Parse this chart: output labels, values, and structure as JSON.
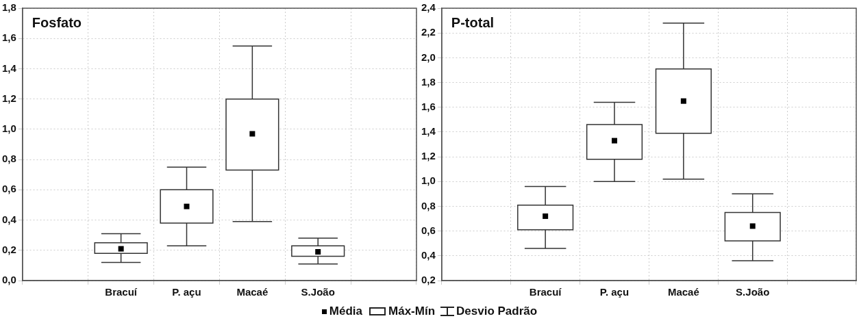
{
  "chart_data": [
    {
      "type": "box",
      "title": "Fosfato",
      "categories": [
        null,
        "Bracuí",
        "P. açu",
        "Macaé",
        "S.João",
        null
      ],
      "ylim": [
        0,
        1.8
      ],
      "yticks": [
        {
          "value": 0,
          "label": "0,0"
        },
        {
          "value": 0.2,
          "label": "0,2"
        },
        {
          "value": 0.4,
          "label": "0,4"
        },
        {
          "value": 0.6,
          "label": "0,6"
        },
        {
          "value": 0.8,
          "label": "0,8"
        },
        {
          "value": 1.0,
          "label": "1,0"
        },
        {
          "value": 1.2,
          "label": "1,2"
        },
        {
          "value": 1.4,
          "label": "1,4"
        },
        {
          "value": 1.6,
          "label": "1,6"
        },
        {
          "value": 1.8,
          "label": "1,8"
        }
      ],
      "grid": true,
      "marker": "square",
      "boxes": [
        null,
        {
          "low": 0.12,
          "q1": 0.18,
          "q3": 0.25,
          "high": 0.31,
          "mean": 0.21
        },
        {
          "low": 0.23,
          "q1": 0.38,
          "q3": 0.6,
          "high": 0.75,
          "mean": 0.49
        },
        {
          "low": 0.39,
          "q1": 0.73,
          "q3": 1.2,
          "high": 1.55,
          "mean": 0.97
        },
        {
          "low": 0.11,
          "q1": 0.16,
          "q3": 0.23,
          "high": 0.28,
          "mean": 0.19
        },
        null
      ]
    },
    {
      "type": "box",
      "title": "P-total",
      "categories": [
        null,
        "Bracuí",
        "P. açu",
        "Macaé",
        "S.João",
        null
      ],
      "ylim": [
        0.2,
        2.4
      ],
      "yticks": [
        {
          "value": 0.2,
          "label": "0,2"
        },
        {
          "value": 0.4,
          "label": "0,4"
        },
        {
          "value": 0.6,
          "label": "0,6"
        },
        {
          "value": 0.8,
          "label": "0,8"
        },
        {
          "value": 1.0,
          "label": "1,0"
        },
        {
          "value": 1.2,
          "label": "1,2"
        },
        {
          "value": 1.4,
          "label": "1,4"
        },
        {
          "value": 1.6,
          "label": "1,6"
        },
        {
          "value": 1.8,
          "label": "1,8"
        },
        {
          "value": 2.0,
          "label": "2,0"
        },
        {
          "value": 2.2,
          "label": "2,2"
        },
        {
          "value": 2.4,
          "label": "2,4"
        }
      ],
      "grid": true,
      "marker": "square",
      "boxes": [
        null,
        {
          "low": 0.46,
          "q1": 0.61,
          "q3": 0.81,
          "high": 0.96,
          "mean": 0.72
        },
        {
          "low": 1.0,
          "q1": 1.18,
          "q3": 1.46,
          "high": 1.64,
          "mean": 1.33
        },
        {
          "low": 1.02,
          "q1": 1.39,
          "q3": 1.91,
          "high": 2.28,
          "mean": 1.65
        },
        {
          "low": 0.36,
          "q1": 0.52,
          "q3": 0.75,
          "high": 0.9,
          "mean": 0.64
        },
        null
      ],
      "annotations": [
        "Média",
        "Máx-Mín",
        "Desvio Padrão"
      ]
    }
  ]
}
